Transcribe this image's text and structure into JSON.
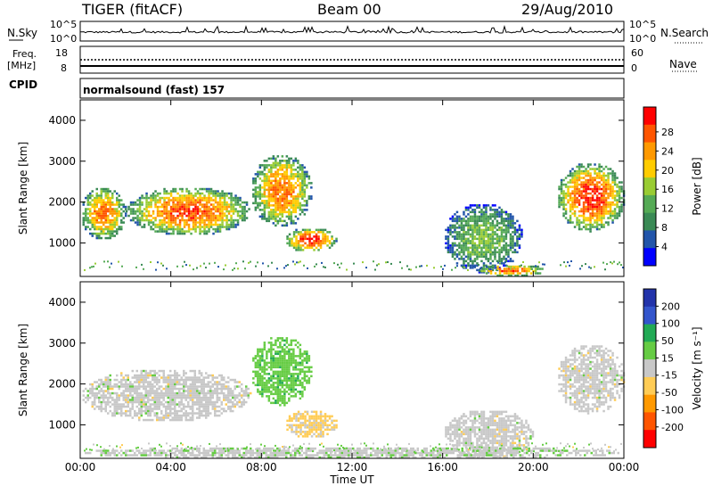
{
  "header": {
    "station": "TIGER (fitACF)",
    "beam": "Beam 00",
    "date": "29/Aug/2010"
  },
  "sky_panel": {
    "left_label": "N.Sky",
    "right_label": "N.Search",
    "left_ticks": [
      "10^5",
      "10^0"
    ],
    "right_ticks": [
      "10^5",
      "10^0"
    ]
  },
  "freq_panel": {
    "left_label_1": "Freq.",
    "left_label_2": "[MHz]",
    "right_label": "Nave",
    "left_ticks": [
      "18",
      "8"
    ],
    "right_ticks": [
      "60",
      "0"
    ]
  },
  "cpid_panel": {
    "label": "CPID",
    "value": "normalsound (fast) 157"
  },
  "colors": {
    "power": [
      "#0000ff",
      "#2255aa",
      "#3a8a55",
      "#55aa55",
      "#99cc33",
      "#ffcc00",
      "#ff9900",
      "#ff5500",
      "#ff0000"
    ],
    "velocity": [
      "#2233aa",
      "#3355cc",
      "#22aa55",
      "#66cc44",
      "#c8c8c8",
      "#ffcc55",
      "#ff9900",
      "#ff5500",
      "#ff0000"
    ]
  },
  "chart_data": [
    {
      "type": "heatmap",
      "title": "",
      "xlabel": "",
      "ylabel": "Slant Range [km]",
      "x_tick_labels": [
        "00:00",
        "04:00",
        "08:00",
        "12:00",
        "16:00",
        "20:00",
        "00:00"
      ],
      "y_tick_labels": [
        "1000",
        "2000",
        "3000",
        "4000"
      ],
      "xlim": [
        0,
        24
      ],
      "ylim": [
        180,
        4500
      ],
      "colorbar": {
        "label": "Power [dB]",
        "ticks": [
          "4",
          "8",
          "12",
          "16",
          "20",
          "24",
          "28"
        ],
        "range": [
          0,
          30
        ]
      },
      "echo_regions": [
        {
          "time_start": 0.0,
          "time_end": 2.0,
          "range_start": 1100,
          "range_end": 2400,
          "peak_db": 24
        },
        {
          "time_start": 2.0,
          "time_end": 7.5,
          "range_start": 1200,
          "range_end": 2400,
          "peak_db": 26
        },
        {
          "time_start": 7.5,
          "time_end": 10.2,
          "range_start": 1400,
          "range_end": 3200,
          "peak_db": 24
        },
        {
          "time_start": 9.0,
          "time_end": 11.3,
          "range_start": 800,
          "range_end": 1400,
          "peak_db": 28
        },
        {
          "time_start": 16.0,
          "time_end": 19.5,
          "range_start": 300,
          "range_end": 2000,
          "peak_db": 14
        },
        {
          "time_start": 17.5,
          "time_end": 20.5,
          "range_start": 200,
          "range_end": 500,
          "peak_db": 26
        },
        {
          "time_start": 21.0,
          "time_end": 24.0,
          "range_start": 1300,
          "range_end": 3000,
          "peak_db": 28
        }
      ]
    },
    {
      "type": "heatmap",
      "title": "",
      "xlabel": "Time UT",
      "ylabel": "Slant Range [km]",
      "x_tick_labels": [
        "00:00",
        "04:00",
        "08:00",
        "12:00",
        "16:00",
        "20:00",
        "00:00"
      ],
      "y_tick_labels": [
        "1000",
        "2000",
        "3000",
        "4000"
      ],
      "xlim": [
        0,
        24
      ],
      "ylim": [
        180,
        4500
      ],
      "colorbar": {
        "label": "Velocity [m s⁻¹]",
        "ticks": [
          "200",
          "100",
          "50",
          "15",
          "-15",
          "-50",
          "-100",
          "-200"
        ],
        "range": [
          -250,
          250
        ]
      },
      "echo_regions": [
        {
          "time_start": 0.0,
          "time_end": 7.5,
          "range_start": 1100,
          "range_end": 2400,
          "velocity": 0
        },
        {
          "time_start": 7.5,
          "time_end": 10.2,
          "range_start": 1500,
          "range_end": 3200,
          "velocity": 60
        },
        {
          "time_start": 9.0,
          "time_end": 11.3,
          "range_start": 700,
          "range_end": 1400,
          "velocity": -40
        },
        {
          "time_start": 16.0,
          "time_end": 20.0,
          "range_start": 200,
          "range_end": 1400,
          "velocity": 0
        },
        {
          "time_start": 21.0,
          "time_end": 24.0,
          "range_start": 1300,
          "range_end": 3000,
          "velocity": 0
        },
        {
          "time_start": 0.0,
          "time_end": 24.0,
          "range_start": 180,
          "range_end": 500,
          "velocity": 10
        }
      ]
    }
  ]
}
